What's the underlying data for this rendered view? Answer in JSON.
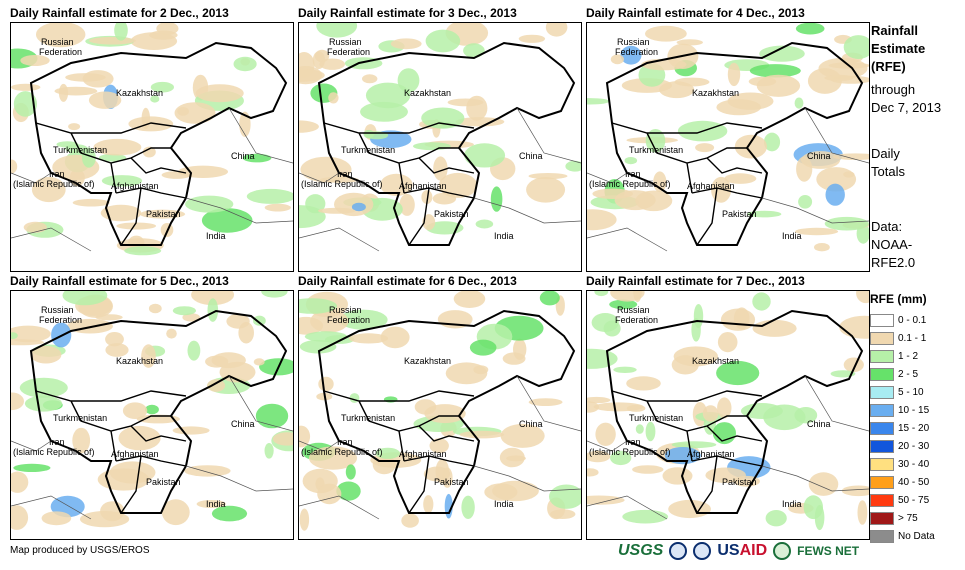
{
  "panels": [
    {
      "title": "Daily Rainfall estimate for 2 Dec., 2013"
    },
    {
      "title": "Daily Rainfall estimate for 3 Dec., 2013"
    },
    {
      "title": "Daily Rainfall estimate for 4 Dec., 2013"
    },
    {
      "title": "Daily Rainfall estimate for 5 Dec., 2013"
    },
    {
      "title": "Daily Rainfall estimate for 6 Dec., 2013"
    },
    {
      "title": "Daily Rainfall estimate for 7 Dec., 2013"
    }
  ],
  "map_labels": {
    "russia_1": "Russian",
    "russia_2": "Federation",
    "kazakhstan": "Kazakhstan",
    "turkmenistan": "Turkmenistan",
    "iran_1": "Iran",
    "iran_2": "(Islamic Republic of)",
    "afghanistan": "Afghanistan",
    "pakistan": "Pakistan",
    "china": "China",
    "india": "India"
  },
  "sidebar": {
    "title_1": "Rainfall",
    "title_2": "Estimate",
    "title_3": "(RFE)",
    "through": "through",
    "date": "Dec 7, 2013",
    "daily": "Daily",
    "totals": "Totals",
    "data": "Data:",
    "noaa": "NOAA-",
    "rfe": "RFE2.0"
  },
  "legend": {
    "title": "RFE (mm)",
    "items": [
      {
        "label": "0 - 0.1",
        "color": "#ffffff"
      },
      {
        "label": "0.1 - 1",
        "color": "#f0d8b0"
      },
      {
        "label": "1 - 2",
        "color": "#b6f0a8"
      },
      {
        "label": "2 - 5",
        "color": "#66e26a"
      },
      {
        "label": "5 - 10",
        "color": "#a8ecf2"
      },
      {
        "label": "10 - 15",
        "color": "#6aaef0"
      },
      {
        "label": "15 - 20",
        "color": "#3a86ec"
      },
      {
        "label": "20 - 30",
        "color": "#1256dc"
      },
      {
        "label": "30 - 40",
        "color": "#ffe080"
      },
      {
        "label": "40 - 50",
        "color": "#ff9f1a"
      },
      {
        "label": "50 - 75",
        "color": "#ff3a10"
      },
      {
        "label": "> 75",
        "color": "#a01818"
      },
      {
        "label": "No Data",
        "color": "#8c8c8c"
      }
    ]
  },
  "footer": {
    "credit": "Map produced by USGS/EROS",
    "logo_usgs": "USGS",
    "logo_usaid_a": "US",
    "logo_usaid_b": "AID",
    "logo_fews": "FEWS NET"
  }
}
